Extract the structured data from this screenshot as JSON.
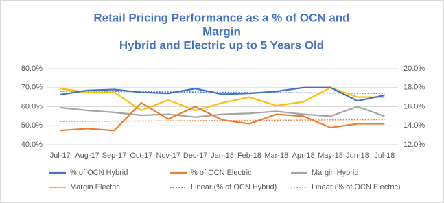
{
  "chart_data": {
    "type": "line",
    "title": [
      "Retail Pricing Performance as a % of OCN and",
      "Margin",
      "Hybrid and Electric up to 5 Years Old"
    ],
    "categories": [
      "Jul-17",
      "Aug-17",
      "Sep-17",
      "Oct-17",
      "Nov-17",
      "Dec-17",
      "Jan-18",
      "Feb-18",
      "Mar-18",
      "Apr-18",
      "May-18",
      "Jun-18",
      "Jul-18"
    ],
    "series": [
      {
        "name": "% of OCN Hybrid",
        "color": "#4472c4",
        "values": [
          66.3,
          68.5,
          69,
          67.5,
          67,
          69.5,
          66.5,
          67,
          68,
          70,
          70,
          63,
          66
        ]
      },
      {
        "name": "% of OCN Electric",
        "color": "#ed7d31",
        "values": [
          47.5,
          48.5,
          47.5,
          62,
          53.5,
          60,
          53,
          51,
          56,
          55,
          49,
          51,
          51
        ]
      },
      {
        "name": "Margin Hybrid",
        "color": "#a5a5a5",
        "axis": "y2",
        "values": [
          15.9,
          15.6,
          15.4,
          15.1,
          15.2,
          14.9,
          15.2,
          15.3,
          15.5,
          15.2,
          15.0,
          16.0,
          15.0
        ]
      },
      {
        "name": "Margin Electric",
        "color": "#ffc000",
        "axis": "y2",
        "values": [
          17.9,
          17.5,
          17.5,
          15.6,
          16.7,
          15.6,
          16.4,
          17.0,
          16.1,
          16.5,
          18.0,
          17.0,
          17.0
        ]
      }
    ],
    "trendlines": [
      {
        "name": "Linear (% of OCN Hybrid)",
        "series": 0,
        "color": "#4472c4"
      },
      {
        "name": "Linear (% of OCN Electric)",
        "series": 1,
        "color": "#ed7d31"
      }
    ],
    "ylim": [
      40,
      80
    ],
    "yticks": [
      {
        "value": 40,
        "label": "40.0%"
      },
      {
        "value": 50,
        "label": "50.0%"
      },
      {
        "value": 60,
        "label": "60.0%"
      },
      {
        "value": 70,
        "label": "70.0%"
      },
      {
        "value": 80,
        "label": "80.0%"
      }
    ],
    "y2lim": [
      12,
      20
    ],
    "y2ticks": [
      {
        "value": 12,
        "label": "12.0%"
      },
      {
        "value": 14,
        "label": "14.0%"
      },
      {
        "value": 16,
        "label": "16.0%"
      },
      {
        "value": 18,
        "label": "18.0%"
      },
      {
        "value": 20,
        "label": "20.0%"
      }
    ],
    "grid": true
  }
}
